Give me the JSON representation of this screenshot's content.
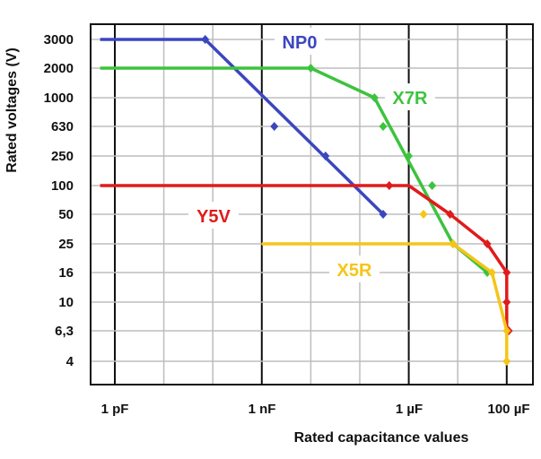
{
  "chart_data": {
    "type": "line",
    "title": "",
    "xlabel": "Rated capacitance values",
    "ylabel": "Rated voltages (V)",
    "x_ticks": [
      "1 pF",
      "1 nF",
      "1 µF",
      "100 µF"
    ],
    "y_ticks": [
      "4",
      "6,3",
      "10",
      "16",
      "25",
      "50",
      "100",
      "250",
      "630",
      "1000",
      "2000",
      "3000"
    ],
    "grid": true,
    "series": [
      {
        "name": "NP0",
        "color": "#3b46c0",
        "line": [
          [
            "0.5 pF",
            "3000"
          ],
          [
            "70 pF",
            "3000"
          ],
          [
            "300 nF",
            "50"
          ]
        ],
        "points": [
          [
            "70 pF",
            "3000"
          ],
          [
            "1.8 nF",
            "630"
          ],
          [
            "20 nF",
            "250"
          ],
          [
            "300 nF",
            "50"
          ]
        ]
      },
      {
        "name": "X7R",
        "color": "#3dc33d",
        "line": [
          [
            "0.5 pF",
            "2000"
          ],
          [
            "10 nF",
            "2000"
          ],
          [
            "200 nF",
            "1000"
          ],
          [
            "8 µF",
            "25"
          ],
          [
            "40 µF",
            "16"
          ]
        ],
        "points": [
          [
            "10 nF",
            "2000"
          ],
          [
            "200 nF",
            "1000"
          ],
          [
            "300 nF",
            "630"
          ],
          [
            "1 µF",
            "250"
          ],
          [
            "3 µF",
            "100"
          ],
          [
            "8 µF",
            "25"
          ],
          [
            "40 µF",
            "16"
          ]
        ]
      },
      {
        "name": "Y5V",
        "color": "#e01b1b",
        "line": [
          [
            "0.5 pF",
            "100"
          ],
          [
            "400 nF",
            "100"
          ],
          [
            "1 µF",
            "100"
          ],
          [
            "7 µF",
            "50"
          ],
          [
            "40 µF",
            "25"
          ],
          [
            "100 µF",
            "16"
          ],
          [
            "100 µF",
            "10"
          ],
          [
            "100 µF",
            "6,3"
          ]
        ],
        "points": [
          [
            "400 nF",
            "100"
          ],
          [
            "7 µF",
            "50"
          ],
          [
            "40 µF",
            "25"
          ],
          [
            "100 µF",
            "16"
          ],
          [
            "100 µF",
            "10"
          ],
          [
            "110 µF",
            "6,3"
          ]
        ]
      },
      {
        "name": "X5R",
        "color": "#f5c518",
        "line": [
          [
            "1 nF",
            "25"
          ],
          [
            "8 µF",
            "25"
          ],
          [
            "50 µF",
            "16"
          ],
          [
            "100 µF",
            "6,3"
          ],
          [
            "100 µF",
            "4"
          ]
        ],
        "points": [
          [
            "2 µF",
            "50"
          ],
          [
            "8 µF",
            "25"
          ],
          [
            "50 µF",
            "16"
          ],
          [
            "100 µF",
            "6,3"
          ],
          [
            "100 µF",
            "4"
          ]
        ]
      }
    ]
  }
}
